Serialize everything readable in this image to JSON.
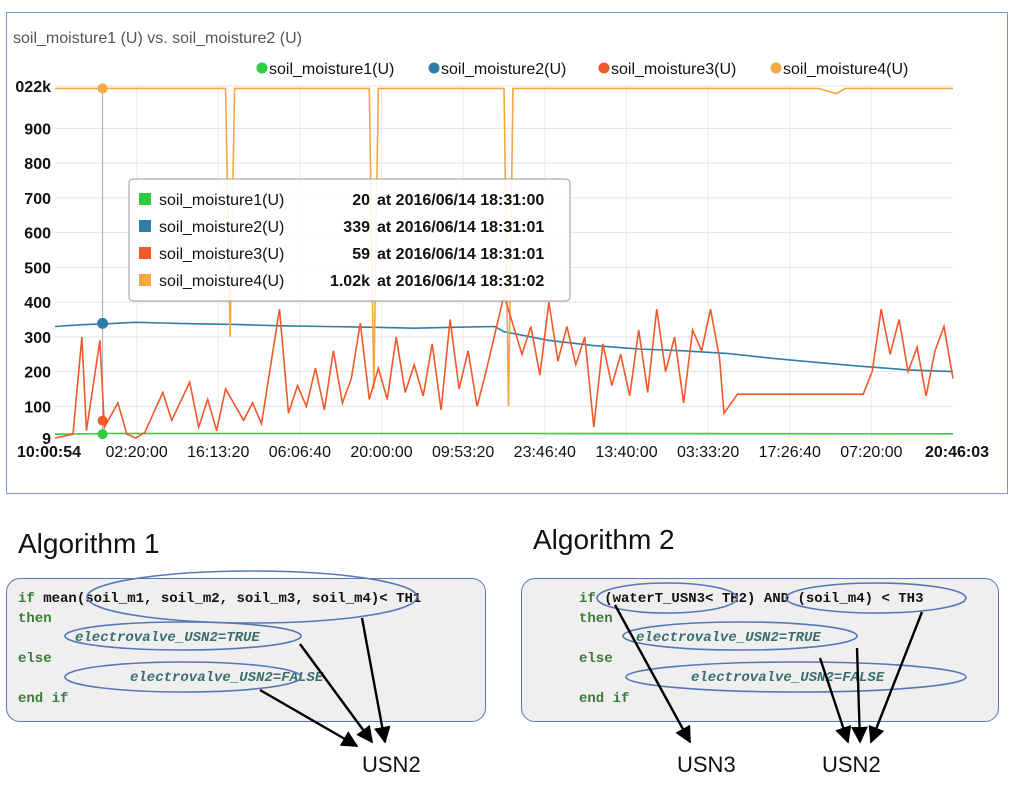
{
  "chart_data": {
    "type": "line",
    "title": "soil_moisture1 (U) vs. soil_moisture2 (U)",
    "series": [
      {
        "name": "soil_moisture1(U)",
        "color": "#2ecc40",
        "values": [
          [
            0,
            20
          ],
          [
            0.06,
            22
          ],
          [
            0.5,
            22
          ],
          [
            1,
            21
          ]
        ]
      },
      {
        "name": "soil_moisture2(U)",
        "color": "#2f7ea8",
        "values": [
          [
            0,
            330
          ],
          [
            0.03,
            335
          ],
          [
            0.06,
            338
          ],
          [
            0.09,
            342
          ],
          [
            0.12,
            340
          ],
          [
            0.15,
            338
          ],
          [
            0.2,
            336
          ],
          [
            0.25,
            332
          ],
          [
            0.3,
            330
          ],
          [
            0.35,
            328
          ],
          [
            0.4,
            325
          ],
          [
            0.45,
            328
          ],
          [
            0.49,
            330
          ],
          [
            0.5,
            315
          ],
          [
            0.55,
            290
          ],
          [
            0.6,
            275
          ],
          [
            0.65,
            265
          ],
          [
            0.7,
            260
          ],
          [
            0.75,
            252
          ],
          [
            0.8,
            238
          ],
          [
            0.85,
            226
          ],
          [
            0.9,
            215
          ],
          [
            0.95,
            205
          ],
          [
            1,
            200
          ]
        ]
      },
      {
        "name": "soil_moisture3(U)",
        "color": "#f0592b",
        "values": [
          [
            0,
            0
          ],
          [
            0.02,
            20
          ],
          [
            0.03,
            300
          ],
          [
            0.035,
            30
          ],
          [
            0.05,
            290
          ],
          [
            0.055,
            40
          ],
          [
            0.07,
            110
          ],
          [
            0.08,
            20
          ],
          [
            0.09,
            5
          ],
          [
            0.1,
            25
          ],
          [
            0.12,
            140
          ],
          [
            0.13,
            60
          ],
          [
            0.15,
            170
          ],
          [
            0.16,
            40
          ],
          [
            0.17,
            120
          ],
          [
            0.18,
            30
          ],
          [
            0.19,
            150
          ],
          [
            0.21,
            60
          ],
          [
            0.22,
            110
          ],
          [
            0.23,
            50
          ],
          [
            0.25,
            380
          ],
          [
            0.26,
            80
          ],
          [
            0.27,
            160
          ],
          [
            0.28,
            100
          ],
          [
            0.29,
            210
          ],
          [
            0.3,
            90
          ],
          [
            0.31,
            260
          ],
          [
            0.32,
            110
          ],
          [
            0.33,
            180
          ],
          [
            0.34,
            340
          ],
          [
            0.35,
            120
          ],
          [
            0.36,
            210
          ],
          [
            0.37,
            120
          ],
          [
            0.38,
            300
          ],
          [
            0.39,
            140
          ],
          [
            0.4,
            220
          ],
          [
            0.41,
            130
          ],
          [
            0.42,
            280
          ],
          [
            0.43,
            90
          ],
          [
            0.44,
            350
          ],
          [
            0.45,
            150
          ],
          [
            0.46,
            260
          ],
          [
            0.47,
            100
          ],
          [
            0.48,
            200
          ],
          [
            0.5,
            420
          ],
          [
            0.52,
            250
          ],
          [
            0.53,
            330
          ],
          [
            0.54,
            190
          ],
          [
            0.55,
            400
          ],
          [
            0.56,
            230
          ],
          [
            0.57,
            330
          ],
          [
            0.58,
            220
          ],
          [
            0.59,
            300
          ],
          [
            0.6,
            40
          ],
          [
            0.61,
            280
          ],
          [
            0.62,
            160
          ],
          [
            0.63,
            250
          ],
          [
            0.64,
            130
          ],
          [
            0.65,
            320
          ],
          [
            0.66,
            140
          ],
          [
            0.67,
            380
          ],
          [
            0.68,
            200
          ],
          [
            0.69,
            300
          ],
          [
            0.7,
            110
          ],
          [
            0.71,
            320
          ],
          [
            0.72,
            260
          ],
          [
            0.73,
            380
          ],
          [
            0.74,
            240
          ],
          [
            0.745,
            80
          ],
          [
            0.76,
            135
          ],
          [
            0.8,
            135
          ],
          [
            0.85,
            135
          ],
          [
            0.9,
            135
          ],
          [
            0.91,
            200
          ],
          [
            0.92,
            380
          ],
          [
            0.93,
            250
          ],
          [
            0.94,
            350
          ],
          [
            0.95,
            200
          ],
          [
            0.96,
            270
          ],
          [
            0.97,
            130
          ],
          [
            0.98,
            260
          ],
          [
            0.99,
            330
          ],
          [
            1,
            180
          ]
        ]
      },
      {
        "name": "soil_moisture4(U)",
        "color": "#f5a742",
        "values": [
          [
            0,
            1015
          ],
          [
            0.1,
            1015
          ],
          [
            0.19,
            1015
          ],
          [
            0.195,
            300
          ],
          [
            0.2,
            1015
          ],
          [
            0.35,
            1015
          ],
          [
            0.355,
            150
          ],
          [
            0.36,
            1015
          ],
          [
            0.5,
            1015
          ],
          [
            0.505,
            100
          ],
          [
            0.51,
            1015
          ],
          [
            0.6,
            1015
          ],
          [
            0.8,
            1015
          ],
          [
            0.85,
            1015
          ],
          [
            0.87,
            1000
          ],
          [
            0.88,
            1015
          ],
          [
            1,
            1015
          ]
        ]
      }
    ],
    "y_ticks": [
      "100",
      "200",
      "300",
      "400",
      "500",
      "600",
      "700",
      "800",
      "900"
    ],
    "y_top_label": "022k",
    "y_bottom_label": "9",
    "ylim": [
      9,
      1022
    ],
    "x_ticks": [
      "02:20:00",
      "16:13:20",
      "06:06:40",
      "20:00:00",
      "09:53:20",
      "23:46:40",
      "13:40:00",
      "03:33:20",
      "17:26:40",
      "07:20:00"
    ],
    "x_start": "10:00:54",
    "x_end": "20:46:03",
    "grid": true,
    "legend_position": "top-right",
    "tooltip": [
      {
        "name": "soil_moisture1(U)",
        "value": "20",
        "time": "at 2016/06/14 18:31:00",
        "color": "#2ecc40"
      },
      {
        "name": "soil_moisture2(U)",
        "value": "339",
        "time": "at 2016/06/14 18:31:01",
        "color": "#2f7ea8"
      },
      {
        "name": "soil_moisture3(U)",
        "value": "59",
        "time": "at 2016/06/14 18:31:01",
        "color": "#f0592b"
      },
      {
        "name": "soil_moisture4(U)",
        "value": "1.02k",
        "time": "at 2016/06/14 18:31:02",
        "color": "#f5a742"
      }
    ]
  },
  "algorithm1": {
    "title": "Algorithm 1",
    "line1_kw": "if",
    "line1": " mean(soil_m1, soil_m2, soil_m3, soil_m4)< TH1",
    "then": "then",
    "assign_true": "electrovalve_USN2=TRUE",
    "else": "else",
    "assign_false": "electrovalve_USN2=FALSE",
    "end": "end if",
    "target": "USN2"
  },
  "algorithm2": {
    "title": "Algorithm 2",
    "line1_kw": "if",
    "line1": " (waterT_USN3< TH2) AND (soil_m4) < TH3",
    "then": "then",
    "assign_true": "electrovalve_USN2=TRUE",
    "else": "else",
    "assign_false": "electrovalve_USN2=FALSE",
    "end": "end if",
    "target_a": "USN3",
    "target_b": "USN2"
  }
}
